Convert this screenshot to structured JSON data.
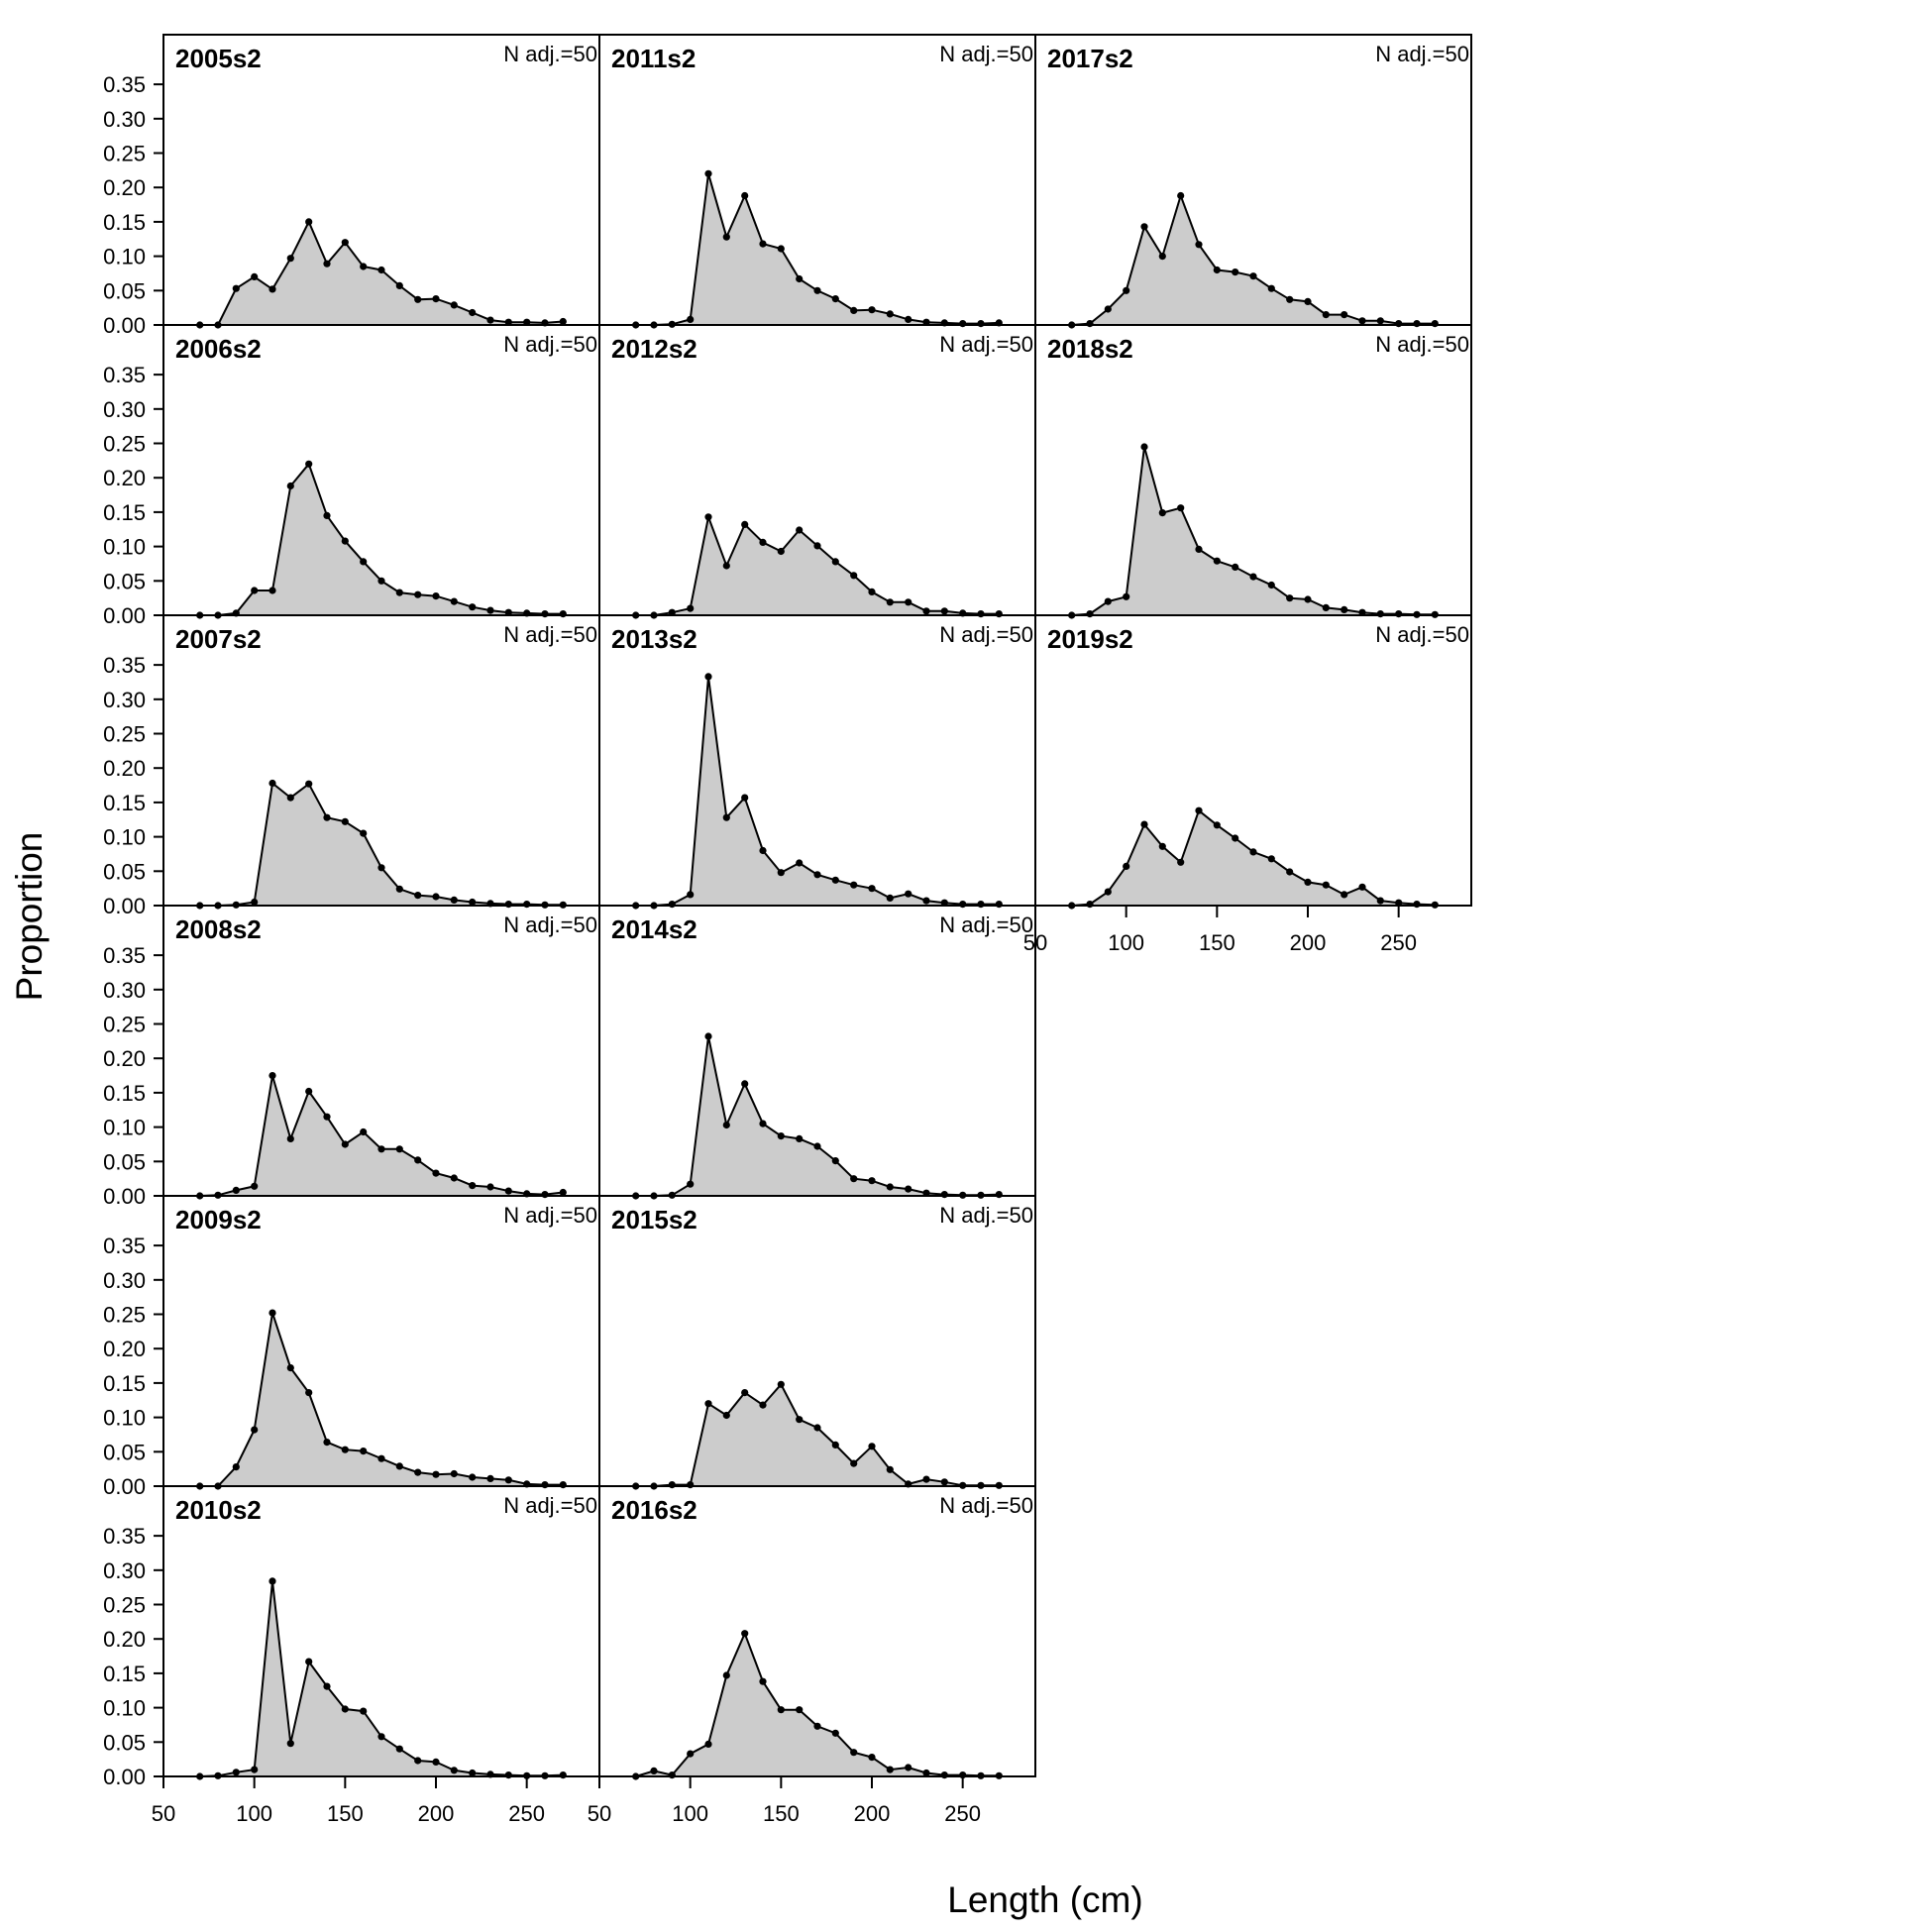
{
  "chart_data": {
    "type": "area",
    "xlabel": "Length (cm)",
    "ylabel": "Proportion",
    "xlim": [
      50,
      290
    ],
    "ylim": [
      0,
      0.38
    ],
    "xticks": [
      "50",
      "100",
      "150",
      "200",
      "250"
    ],
    "yticks": [
      "0.00",
      "0.05",
      "0.10",
      "0.15",
      "0.20",
      "0.25",
      "0.30",
      "0.35"
    ],
    "fill_color": "#cccccc",
    "line_color": "#000000",
    "x": [
      70,
      80,
      90,
      100,
      110,
      120,
      130,
      140,
      150,
      160,
      170,
      180,
      190,
      200,
      210,
      220,
      230,
      240,
      250,
      260,
      270
    ],
    "panels": [
      {
        "title": "2005s2",
        "annotation": "N adj.=50",
        "values": [
          0.0,
          0.0,
          0.053,
          0.07,
          0.052,
          0.097,
          0.15,
          0.089,
          0.12,
          0.085,
          0.08,
          0.057,
          0.037,
          0.038,
          0.029,
          0.018,
          0.007,
          0.004,
          0.004,
          0.003,
          0.005
        ]
      },
      {
        "title": "2006s2",
        "annotation": "N adj.=50",
        "values": [
          0.0,
          0.0,
          0.003,
          0.036,
          0.036,
          0.188,
          0.22,
          0.145,
          0.108,
          0.078,
          0.05,
          0.033,
          0.03,
          0.028,
          0.02,
          0.012,
          0.007,
          0.004,
          0.003,
          0.002,
          0.002
        ]
      },
      {
        "title": "2007s2",
        "annotation": "N adj.=50",
        "values": [
          0.0,
          0.0,
          0.001,
          0.005,
          0.178,
          0.157,
          0.177,
          0.128,
          0.122,
          0.105,
          0.055,
          0.024,
          0.015,
          0.013,
          0.008,
          0.005,
          0.003,
          0.002,
          0.002,
          0.001,
          0.001
        ]
      },
      {
        "title": "2008s2",
        "annotation": "N adj.=50",
        "values": [
          0.0,
          0.001,
          0.008,
          0.014,
          0.175,
          0.083,
          0.152,
          0.115,
          0.075,
          0.093,
          0.068,
          0.068,
          0.052,
          0.033,
          0.026,
          0.015,
          0.013,
          0.007,
          0.003,
          0.002,
          0.005
        ]
      },
      {
        "title": "2009s2",
        "annotation": "N adj.=50",
        "values": [
          0.0,
          0.0,
          0.028,
          0.082,
          0.252,
          0.172,
          0.136,
          0.064,
          0.053,
          0.051,
          0.04,
          0.029,
          0.02,
          0.017,
          0.018,
          0.013,
          0.011,
          0.009,
          0.003,
          0.002,
          0.002
        ]
      },
      {
        "title": "2010s2",
        "annotation": "N adj.=50",
        "values": [
          0.0,
          0.001,
          0.006,
          0.01,
          0.284,
          0.048,
          0.167,
          0.131,
          0.098,
          0.095,
          0.058,
          0.04,
          0.023,
          0.021,
          0.009,
          0.005,
          0.003,
          0.002,
          0.001,
          0.001,
          0.002
        ]
      },
      {
        "title": "2011s2",
        "annotation": "N adj.=50",
        "values": [
          0.0,
          0.0,
          0.001,
          0.008,
          0.22,
          0.128,
          0.188,
          0.118,
          0.111,
          0.067,
          0.05,
          0.038,
          0.021,
          0.022,
          0.016,
          0.008,
          0.004,
          0.003,
          0.002,
          0.002,
          0.003
        ]
      },
      {
        "title": "2012s2",
        "annotation": "N adj.=50",
        "values": [
          0.0,
          0.0,
          0.004,
          0.01,
          0.143,
          0.072,
          0.132,
          0.106,
          0.093,
          0.124,
          0.101,
          0.078,
          0.058,
          0.034,
          0.019,
          0.019,
          0.006,
          0.006,
          0.003,
          0.002,
          0.002
        ]
      },
      {
        "title": "2013s2",
        "annotation": "N adj.=50",
        "values": [
          0.0,
          0.0,
          0.002,
          0.016,
          0.333,
          0.128,
          0.157,
          0.08,
          0.048,
          0.062,
          0.045,
          0.037,
          0.03,
          0.025,
          0.011,
          0.017,
          0.007,
          0.004,
          0.002,
          0.002,
          0.002
        ]
      },
      {
        "title": "2014s2",
        "annotation": "N adj.=50",
        "values": [
          0.0,
          0.0,
          0.001,
          0.017,
          0.232,
          0.103,
          0.163,
          0.105,
          0.087,
          0.083,
          0.072,
          0.051,
          0.025,
          0.022,
          0.013,
          0.01,
          0.004,
          0.002,
          0.001,
          0.001,
          0.002
        ]
      },
      {
        "title": "2015s2",
        "annotation": "N adj.=50",
        "values": [
          0.0,
          0.0,
          0.002,
          0.002,
          0.12,
          0.103,
          0.136,
          0.118,
          0.148,
          0.097,
          0.085,
          0.06,
          0.033,
          0.058,
          0.024,
          0.003,
          0.01,
          0.006,
          0.001,
          0.001,
          0.001
        ]
      },
      {
        "title": "2016s2",
        "annotation": "N adj.=50",
        "values": [
          0.0,
          0.008,
          0.002,
          0.033,
          0.047,
          0.147,
          0.208,
          0.138,
          0.097,
          0.097,
          0.073,
          0.063,
          0.035,
          0.028,
          0.01,
          0.013,
          0.005,
          0.002,
          0.002,
          0.001,
          0.001
        ]
      },
      {
        "title": "2017s2",
        "annotation": "N adj.=50",
        "values": [
          0.0,
          0.002,
          0.023,
          0.05,
          0.143,
          0.1,
          0.188,
          0.117,
          0.08,
          0.077,
          0.071,
          0.053,
          0.037,
          0.034,
          0.015,
          0.015,
          0.006,
          0.006,
          0.002,
          0.002,
          0.002
        ]
      },
      {
        "title": "2018s2",
        "annotation": "N adj.=50",
        "values": [
          0.0,
          0.002,
          0.02,
          0.027,
          0.245,
          0.149,
          0.156,
          0.096,
          0.079,
          0.07,
          0.056,
          0.044,
          0.025,
          0.023,
          0.011,
          0.008,
          0.004,
          0.002,
          0.002,
          0.001,
          0.001
        ]
      },
      {
        "title": "2019s2",
        "annotation": "N adj.=50",
        "values": [
          0.0,
          0.002,
          0.02,
          0.057,
          0.118,
          0.086,
          0.063,
          0.138,
          0.117,
          0.098,
          0.078,
          0.068,
          0.049,
          0.034,
          0.03,
          0.016,
          0.027,
          0.007,
          0.004,
          0.002,
          0.001
        ]
      }
    ]
  }
}
